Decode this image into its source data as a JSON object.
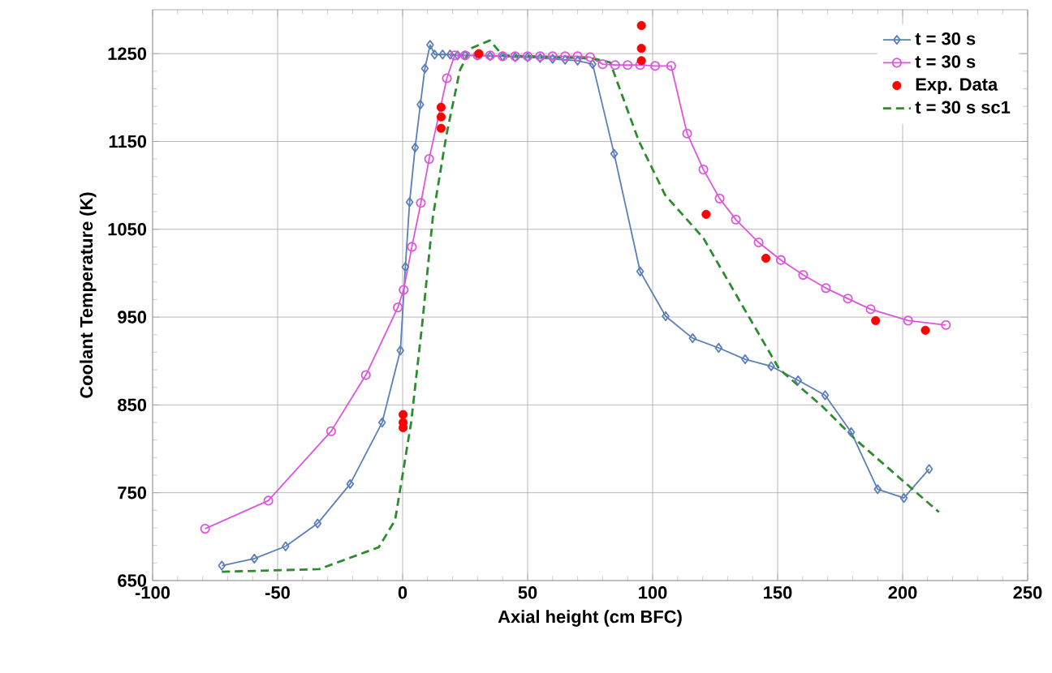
{
  "chart_data": {
    "type": "line",
    "xlabel": "Axial height (cm BFC)",
    "ylabel": "Coolant Temperature (K)",
    "xlim": [
      -100,
      250
    ],
    "xticks": [
      -100,
      -50,
      0,
      50,
      100,
      150,
      200,
      250
    ],
    "ylim": [
      650,
      1300
    ],
    "yticks": [
      650,
      750,
      850,
      950,
      1050,
      1150,
      1250
    ],
    "grid": true,
    "legend": "top right",
    "series": [
      {
        "name": "t = 30 s",
        "marker": "diamond",
        "line_style": "solid",
        "color": "#5b7fb8",
        "x": [
          -72.3,
          -59.3,
          -46.8,
          -34,
          -21,
          -8.2,
          -0.9,
          1.1,
          2.8,
          5.0,
          7.1,
          8.9,
          11,
          12.8,
          16,
          19,
          22,
          25,
          30,
          35,
          40,
          45,
          50,
          55,
          60,
          65,
          70,
          76,
          84.6,
          95,
          105.2,
          116,
          126.4,
          137,
          147.4,
          158.2,
          169,
          179.4,
          190,
          200.5,
          210.6
        ],
        "values": [
          667,
          675,
          689,
          715,
          760,
          830,
          912,
          1007,
          1081,
          1143,
          1192,
          1233,
          1260,
          1249,
          1249,
          1249,
          1248,
          1248,
          1248,
          1247,
          1247,
          1246,
          1246,
          1245,
          1244,
          1243,
          1242,
          1238,
          1136,
          1002,
          951,
          926,
          915,
          902,
          894,
          878,
          861,
          819,
          754,
          744,
          777
        ]
      },
      {
        "name": "t = 30 s",
        "marker": "circle",
        "line_style": "solid",
        "color": "#dd55dd",
        "x": [
          -79,
          -53.7,
          -28.6,
          -14.7,
          -1.9,
          0.4,
          3.7,
          7.3,
          10.6,
          17.7,
          20.8,
          25,
          30,
          35,
          40,
          45,
          50,
          55,
          60,
          65,
          70,
          75,
          80,
          85,
          90,
          95,
          101,
          107.4,
          113.8,
          120.3,
          126.8,
          133.3,
          142.4,
          151.3,
          160.2,
          169.3,
          178.1,
          187.2,
          202.2,
          217.3
        ],
        "values": [
          709,
          741,
          820,
          884,
          961,
          981,
          1030,
          1080,
          1130,
          1222,
          1248,
          1248,
          1248,
          1248,
          1247,
          1247,
          1247,
          1247,
          1247,
          1247,
          1247,
          1246,
          1238,
          1237,
          1237,
          1237,
          1236,
          1236,
          1159,
          1118,
          1085,
          1061,
          1035,
          1015,
          998,
          983,
          971,
          959,
          946,
          941
        ]
      },
      {
        "name": "Exp. Data",
        "type": "scatter",
        "marker": "circle",
        "color": "#ff0000",
        "x": [
          0.2,
          0.2,
          0.2,
          15.4,
          15.4,
          15.4,
          30.5,
          95.5,
          95.5,
          95.5,
          121.4,
          145.3,
          189.2,
          209.1
        ],
        "values": [
          839,
          830,
          824,
          1189,
          1178,
          1165,
          1250,
          1282,
          1256,
          1242,
          1067,
          1017,
          946,
          935
        ]
      },
      {
        "name": "t = 30 s sc1",
        "marker": "none",
        "line_style": "dashed",
        "color": "#2e8b2e",
        "x": [
          -72.3,
          -33.4,
          -9.5,
          -3,
          0.2,
          3.4,
          7.8,
          12.1,
          17.5,
          22.9,
          27.3,
          34.9,
          40,
          50,
          60,
          70,
          77,
          83,
          94.4,
          105,
          120.3,
          135.5,
          150.6,
          168,
          181,
          198.3,
          214.5
        ],
        "values": [
          660,
          663,
          688,
          719,
          774,
          830,
          941,
          1064,
          1157,
          1231,
          1256,
          1265,
          1248,
          1247,
          1246,
          1245,
          1244,
          1240,
          1151,
          1089,
          1040,
          965,
          891,
          848,
          811,
          768,
          728
        ]
      }
    ]
  }
}
